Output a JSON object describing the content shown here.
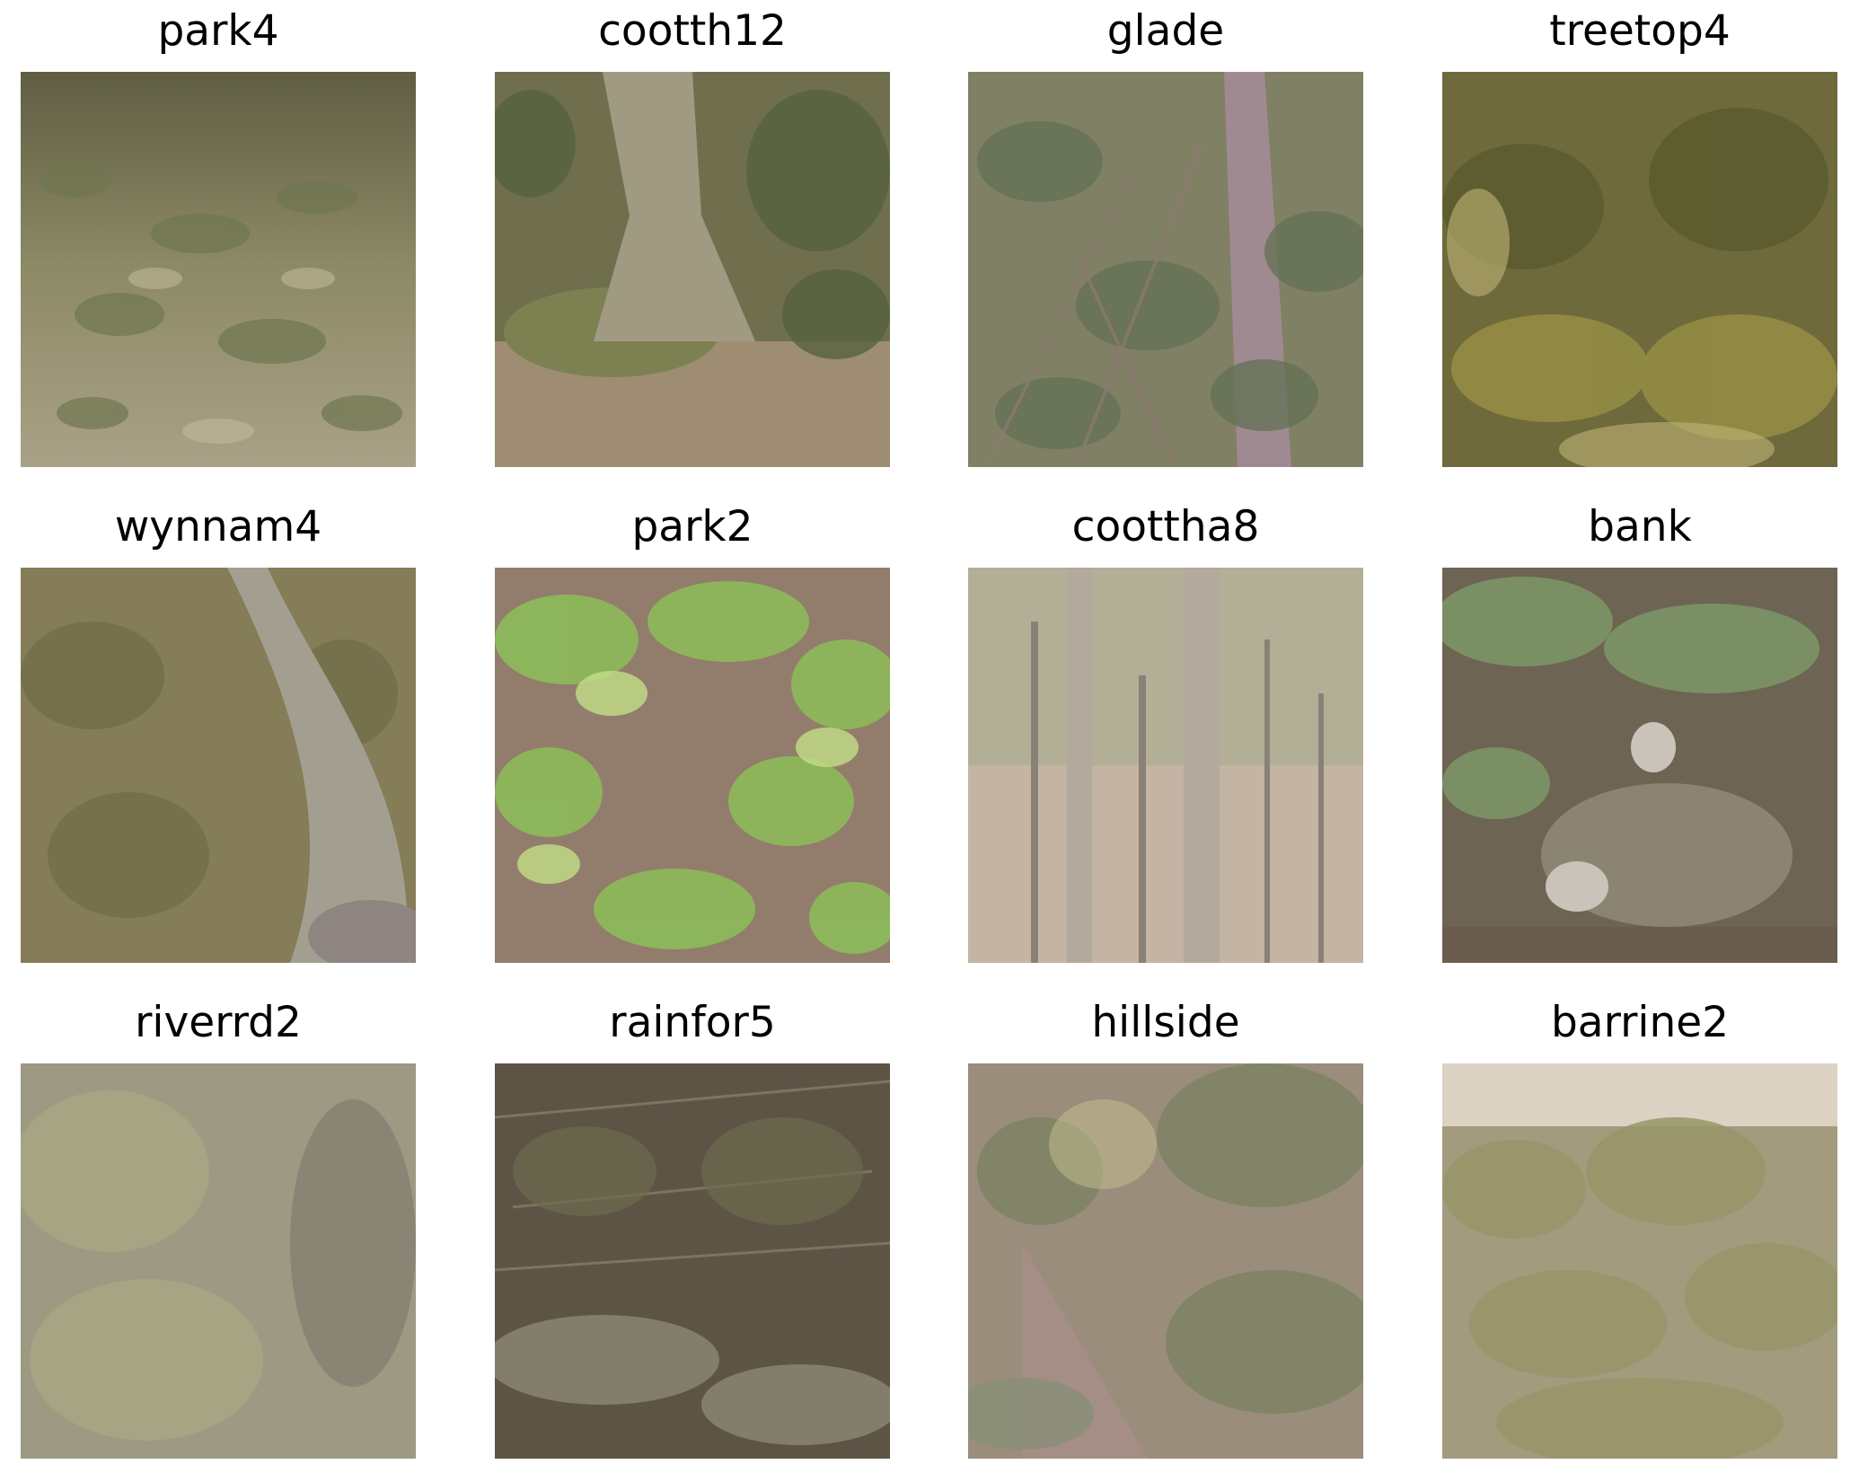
{
  "tiles": [
    {
      "label": "park4"
    },
    {
      "label": "cootth12"
    },
    {
      "label": "glade"
    },
    {
      "label": "treetop4"
    },
    {
      "label": "wynnam4"
    },
    {
      "label": "park2"
    },
    {
      "label": "coottha8"
    },
    {
      "label": "bank"
    },
    {
      "label": "riverrd2"
    },
    {
      "label": "rainfor5"
    },
    {
      "label": "hillside"
    },
    {
      "label": "barrine2"
    }
  ]
}
